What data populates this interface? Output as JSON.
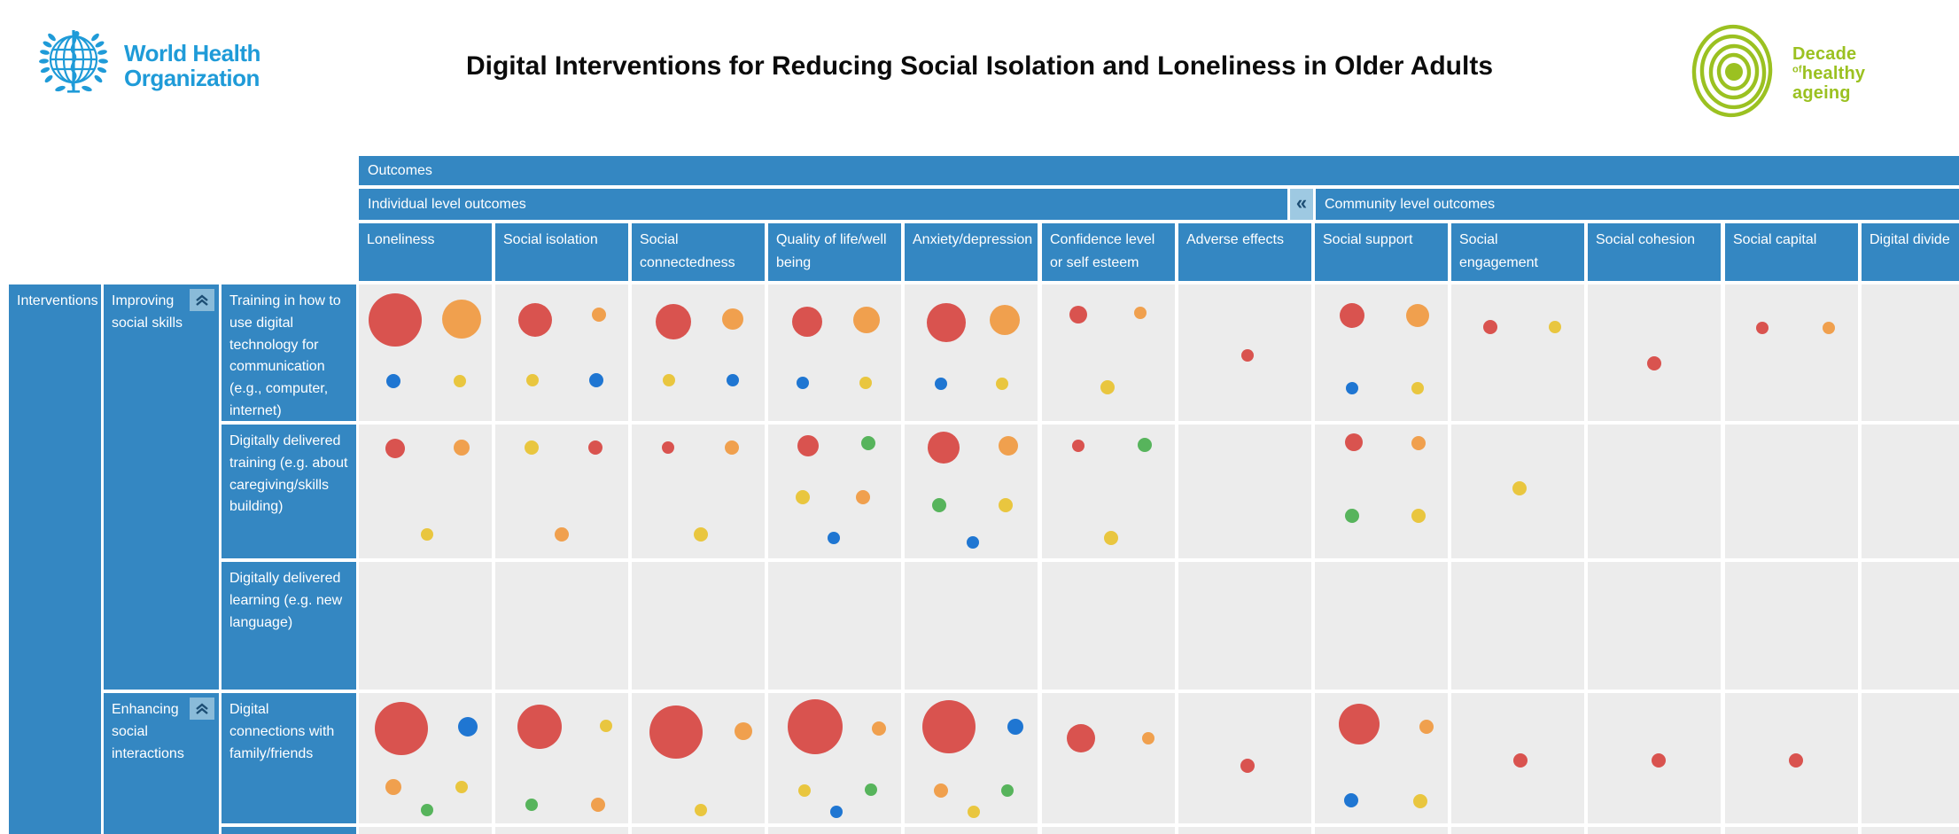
{
  "page": {
    "who_logo_line1": "World Health",
    "who_logo_line2": "Organization",
    "title": "Digital Interventions for Reducing Social Isolation and Loneliness in Older Adults",
    "decade_logo": {
      "word1": "Decade",
      "of": "of",
      "word2": "healthy",
      "word3": "ageing"
    }
  },
  "chart_data": {
    "type": "heatmap",
    "subtype": "evidence-gap-map-bubble-matrix",
    "title": "Digital Interventions for Reducing Social Isolation and Loneliness in Older Adults",
    "outcomes_axis_label": "Outcomes",
    "interventions_axis_label": "Interventions",
    "collapse_button_glyph": "«",
    "column_groups": [
      {
        "label": "Individual level outcomes",
        "columns_from": 0,
        "columns_to": 6
      },
      {
        "label": "Community level outcomes",
        "columns_from": 7,
        "columns_to": 11
      }
    ],
    "columns": [
      "Loneliness",
      "Social isolation",
      "Social connectedness",
      "Quality of life/well being",
      "Anxiety/depression",
      "Confidence level or self esteem",
      "Adverse effects",
      "Social support",
      "Social engagement",
      "Social cohesion",
      "Social capital",
      "Digital divide"
    ],
    "row_groups": [
      {
        "label": "Improving social skills",
        "collapsible": true,
        "rows": [
          "Training in how to use digital technology for communication (e.g., computer, internet)",
          "Digitally delivered training (e.g. about caregiving/skills building)",
          "Digitally delivered learning (e.g. new language)"
        ]
      },
      {
        "label": "Enhancing social interactions",
        "collapsible": true,
        "rows": [
          "Digital connections with family/friends"
        ]
      }
    ],
    "bubble_colors": {
      "red": "#d9534f",
      "orange": "#f0a04e",
      "yellow": "#e9c63f",
      "green": "#57b45c",
      "blue": "#1f76d2"
    },
    "cells": [
      {
        "row": 0,
        "col": 0,
        "bubbles": [
          {
            "color": "red",
            "r": 30,
            "x": 27,
            "y": 26
          },
          {
            "color": "orange",
            "r": 22,
            "x": 77,
            "y": 25
          },
          {
            "color": "blue",
            "r": 8,
            "x": 26,
            "y": 71
          },
          {
            "color": "yellow",
            "r": 7,
            "x": 76,
            "y": 71
          }
        ]
      },
      {
        "row": 0,
        "col": 1,
        "bubbles": [
          {
            "color": "red",
            "r": 19,
            "x": 30,
            "y": 26
          },
          {
            "color": "orange",
            "r": 8,
            "x": 78,
            "y": 22
          },
          {
            "color": "yellow",
            "r": 7,
            "x": 28,
            "y": 70
          },
          {
            "color": "blue",
            "r": 8,
            "x": 76,
            "y": 70
          }
        ]
      },
      {
        "row": 0,
        "col": 2,
        "bubbles": [
          {
            "color": "red",
            "r": 20,
            "x": 31,
            "y": 27
          },
          {
            "color": "orange",
            "r": 12,
            "x": 76,
            "y": 25
          },
          {
            "color": "yellow",
            "r": 7,
            "x": 28,
            "y": 70
          },
          {
            "color": "blue",
            "r": 7,
            "x": 76,
            "y": 70
          }
        ]
      },
      {
        "row": 0,
        "col": 3,
        "bubbles": [
          {
            "color": "red",
            "r": 17,
            "x": 29,
            "y": 27
          },
          {
            "color": "orange",
            "r": 15,
            "x": 74,
            "y": 26
          },
          {
            "color": "blue",
            "r": 7,
            "x": 26,
            "y": 72
          },
          {
            "color": "yellow",
            "r": 7,
            "x": 73,
            "y": 72
          }
        ]
      },
      {
        "row": 0,
        "col": 4,
        "bubbles": [
          {
            "color": "red",
            "r": 22,
            "x": 31,
            "y": 28
          },
          {
            "color": "orange",
            "r": 17,
            "x": 75,
            "y": 26
          },
          {
            "color": "blue",
            "r": 7,
            "x": 27,
            "y": 73
          },
          {
            "color": "yellow",
            "r": 7,
            "x": 73,
            "y": 73
          }
        ]
      },
      {
        "row": 0,
        "col": 5,
        "bubbles": [
          {
            "color": "red",
            "r": 10,
            "x": 27,
            "y": 22
          },
          {
            "color": "orange",
            "r": 7,
            "x": 74,
            "y": 21
          },
          {
            "color": "yellow",
            "r": 8,
            "x": 49,
            "y": 75
          }
        ]
      },
      {
        "row": 0,
        "col": 6,
        "bubbles": [
          {
            "color": "red",
            "r": 7,
            "x": 52,
            "y": 52
          }
        ]
      },
      {
        "row": 0,
        "col": 7,
        "bubbles": [
          {
            "color": "red",
            "r": 14,
            "x": 28,
            "y": 23
          },
          {
            "color": "orange",
            "r": 13,
            "x": 77,
            "y": 23
          },
          {
            "color": "blue",
            "r": 7,
            "x": 28,
            "y": 76
          },
          {
            "color": "yellow",
            "r": 7,
            "x": 77,
            "y": 76
          }
        ]
      },
      {
        "row": 0,
        "col": 8,
        "bubbles": [
          {
            "color": "red",
            "r": 8,
            "x": 29,
            "y": 31
          },
          {
            "color": "yellow",
            "r": 7,
            "x": 78,
            "y": 31
          }
        ]
      },
      {
        "row": 0,
        "col": 9,
        "bubbles": [
          {
            "color": "red",
            "r": 8,
            "x": 50,
            "y": 58
          }
        ]
      },
      {
        "row": 0,
        "col": 10,
        "bubbles": [
          {
            "color": "red",
            "r": 7,
            "x": 28,
            "y": 32
          },
          {
            "color": "orange",
            "r": 7,
            "x": 78,
            "y": 32
          }
        ]
      },
      {
        "row": 1,
        "col": 0,
        "bubbles": [
          {
            "color": "red",
            "r": 11,
            "x": 27,
            "y": 18
          },
          {
            "color": "orange",
            "r": 9,
            "x": 77,
            "y": 17
          },
          {
            "color": "yellow",
            "r": 7,
            "x": 51,
            "y": 82
          }
        ]
      },
      {
        "row": 1,
        "col": 1,
        "bubbles": [
          {
            "color": "yellow",
            "r": 8,
            "x": 27,
            "y": 17
          },
          {
            "color": "red",
            "r": 8,
            "x": 75,
            "y": 17
          },
          {
            "color": "orange",
            "r": 8,
            "x": 50,
            "y": 82
          }
        ]
      },
      {
        "row": 1,
        "col": 2,
        "bubbles": [
          {
            "color": "red",
            "r": 7,
            "x": 27,
            "y": 17
          },
          {
            "color": "orange",
            "r": 8,
            "x": 75,
            "y": 17
          },
          {
            "color": "yellow",
            "r": 8,
            "x": 52,
            "y": 82
          }
        ]
      },
      {
        "row": 1,
        "col": 3,
        "bubbles": [
          {
            "color": "red",
            "r": 12,
            "x": 30,
            "y": 16
          },
          {
            "color": "green",
            "r": 8,
            "x": 75,
            "y": 14
          },
          {
            "color": "yellow",
            "r": 8,
            "x": 26,
            "y": 54
          },
          {
            "color": "orange",
            "r": 8,
            "x": 71,
            "y": 54
          },
          {
            "color": "blue",
            "r": 7,
            "x": 49,
            "y": 85
          }
        ]
      },
      {
        "row": 1,
        "col": 4,
        "bubbles": [
          {
            "color": "red",
            "r": 18,
            "x": 29,
            "y": 17
          },
          {
            "color": "orange",
            "r": 11,
            "x": 78,
            "y": 16
          },
          {
            "color": "green",
            "r": 8,
            "x": 26,
            "y": 60
          },
          {
            "color": "yellow",
            "r": 8,
            "x": 76,
            "y": 60
          },
          {
            "color": "blue",
            "r": 7,
            "x": 51,
            "y": 88
          }
        ]
      },
      {
        "row": 1,
        "col": 5,
        "bubbles": [
          {
            "color": "red",
            "r": 7,
            "x": 27,
            "y": 16
          },
          {
            "color": "green",
            "r": 8,
            "x": 77,
            "y": 15
          },
          {
            "color": "yellow",
            "r": 8,
            "x": 52,
            "y": 85
          }
        ]
      },
      {
        "row": 1,
        "col": 7,
        "bubbles": [
          {
            "color": "red",
            "r": 10,
            "x": 29,
            "y": 13
          },
          {
            "color": "orange",
            "r": 8,
            "x": 78,
            "y": 14
          },
          {
            "color": "green",
            "r": 8,
            "x": 28,
            "y": 68
          },
          {
            "color": "yellow",
            "r": 8,
            "x": 78,
            "y": 68
          }
        ]
      },
      {
        "row": 1,
        "col": 8,
        "bubbles": [
          {
            "color": "yellow",
            "r": 8,
            "x": 51,
            "y": 48
          }
        ]
      },
      {
        "row": 3,
        "col": 0,
        "bubbles": [
          {
            "color": "red",
            "r": 30,
            "x": 32,
            "y": 27
          },
          {
            "color": "blue",
            "r": 11,
            "x": 82,
            "y": 26
          },
          {
            "color": "orange",
            "r": 9,
            "x": 26,
            "y": 72
          },
          {
            "color": "yellow",
            "r": 7,
            "x": 77,
            "y": 72
          },
          {
            "color": "green",
            "r": 7,
            "x": 51,
            "y": 90
          }
        ]
      },
      {
        "row": 3,
        "col": 1,
        "bubbles": [
          {
            "color": "red",
            "r": 25,
            "x": 33,
            "y": 26
          },
          {
            "color": "yellow",
            "r": 7,
            "x": 83,
            "y": 25
          },
          {
            "color": "green",
            "r": 7,
            "x": 27,
            "y": 86
          },
          {
            "color": "orange",
            "r": 8,
            "x": 77,
            "y": 86
          }
        ]
      },
      {
        "row": 3,
        "col": 2,
        "bubbles": [
          {
            "color": "red",
            "r": 30,
            "x": 33,
            "y": 30
          },
          {
            "color": "orange",
            "r": 10,
            "x": 84,
            "y": 29
          },
          {
            "color": "yellow",
            "r": 7,
            "x": 52,
            "y": 90
          }
        ]
      },
      {
        "row": 3,
        "col": 3,
        "bubbles": [
          {
            "color": "red",
            "r": 31,
            "x": 35,
            "y": 26
          },
          {
            "color": "orange",
            "r": 8,
            "x": 83,
            "y": 27
          },
          {
            "color": "yellow",
            "r": 7,
            "x": 27,
            "y": 75
          },
          {
            "color": "green",
            "r": 7,
            "x": 77,
            "y": 74
          },
          {
            "color": "blue",
            "r": 7,
            "x": 51,
            "y": 91
          }
        ]
      },
      {
        "row": 3,
        "col": 4,
        "bubbles": [
          {
            "color": "red",
            "r": 30,
            "x": 33,
            "y": 26
          },
          {
            "color": "blue",
            "r": 9,
            "x": 83,
            "y": 26
          },
          {
            "color": "orange",
            "r": 8,
            "x": 27,
            "y": 75
          },
          {
            "color": "green",
            "r": 7,
            "x": 77,
            "y": 75
          },
          {
            "color": "yellow",
            "r": 7,
            "x": 52,
            "y": 91
          }
        ]
      },
      {
        "row": 3,
        "col": 5,
        "bubbles": [
          {
            "color": "red",
            "r": 16,
            "x": 29,
            "y": 35
          },
          {
            "color": "orange",
            "r": 7,
            "x": 80,
            "y": 35
          }
        ]
      },
      {
        "row": 3,
        "col": 6,
        "bubbles": [
          {
            "color": "red",
            "r": 8,
            "x": 52,
            "y": 56
          }
        ]
      },
      {
        "row": 3,
        "col": 7,
        "bubbles": [
          {
            "color": "red",
            "r": 23,
            "x": 33,
            "y": 24
          },
          {
            "color": "orange",
            "r": 8,
            "x": 84,
            "y": 26
          },
          {
            "color": "blue",
            "r": 8,
            "x": 27,
            "y": 82
          },
          {
            "color": "yellow",
            "r": 8,
            "x": 79,
            "y": 83
          }
        ]
      },
      {
        "row": 3,
        "col": 8,
        "bubbles": [
          {
            "color": "red",
            "r": 8,
            "x": 52,
            "y": 52
          }
        ]
      },
      {
        "row": 3,
        "col": 9,
        "bubbles": [
          {
            "color": "red",
            "r": 8,
            "x": 53,
            "y": 52
          }
        ]
      },
      {
        "row": 3,
        "col": 10,
        "bubbles": [
          {
            "color": "red",
            "r": 8,
            "x": 53,
            "y": 52
          }
        ]
      }
    ]
  }
}
